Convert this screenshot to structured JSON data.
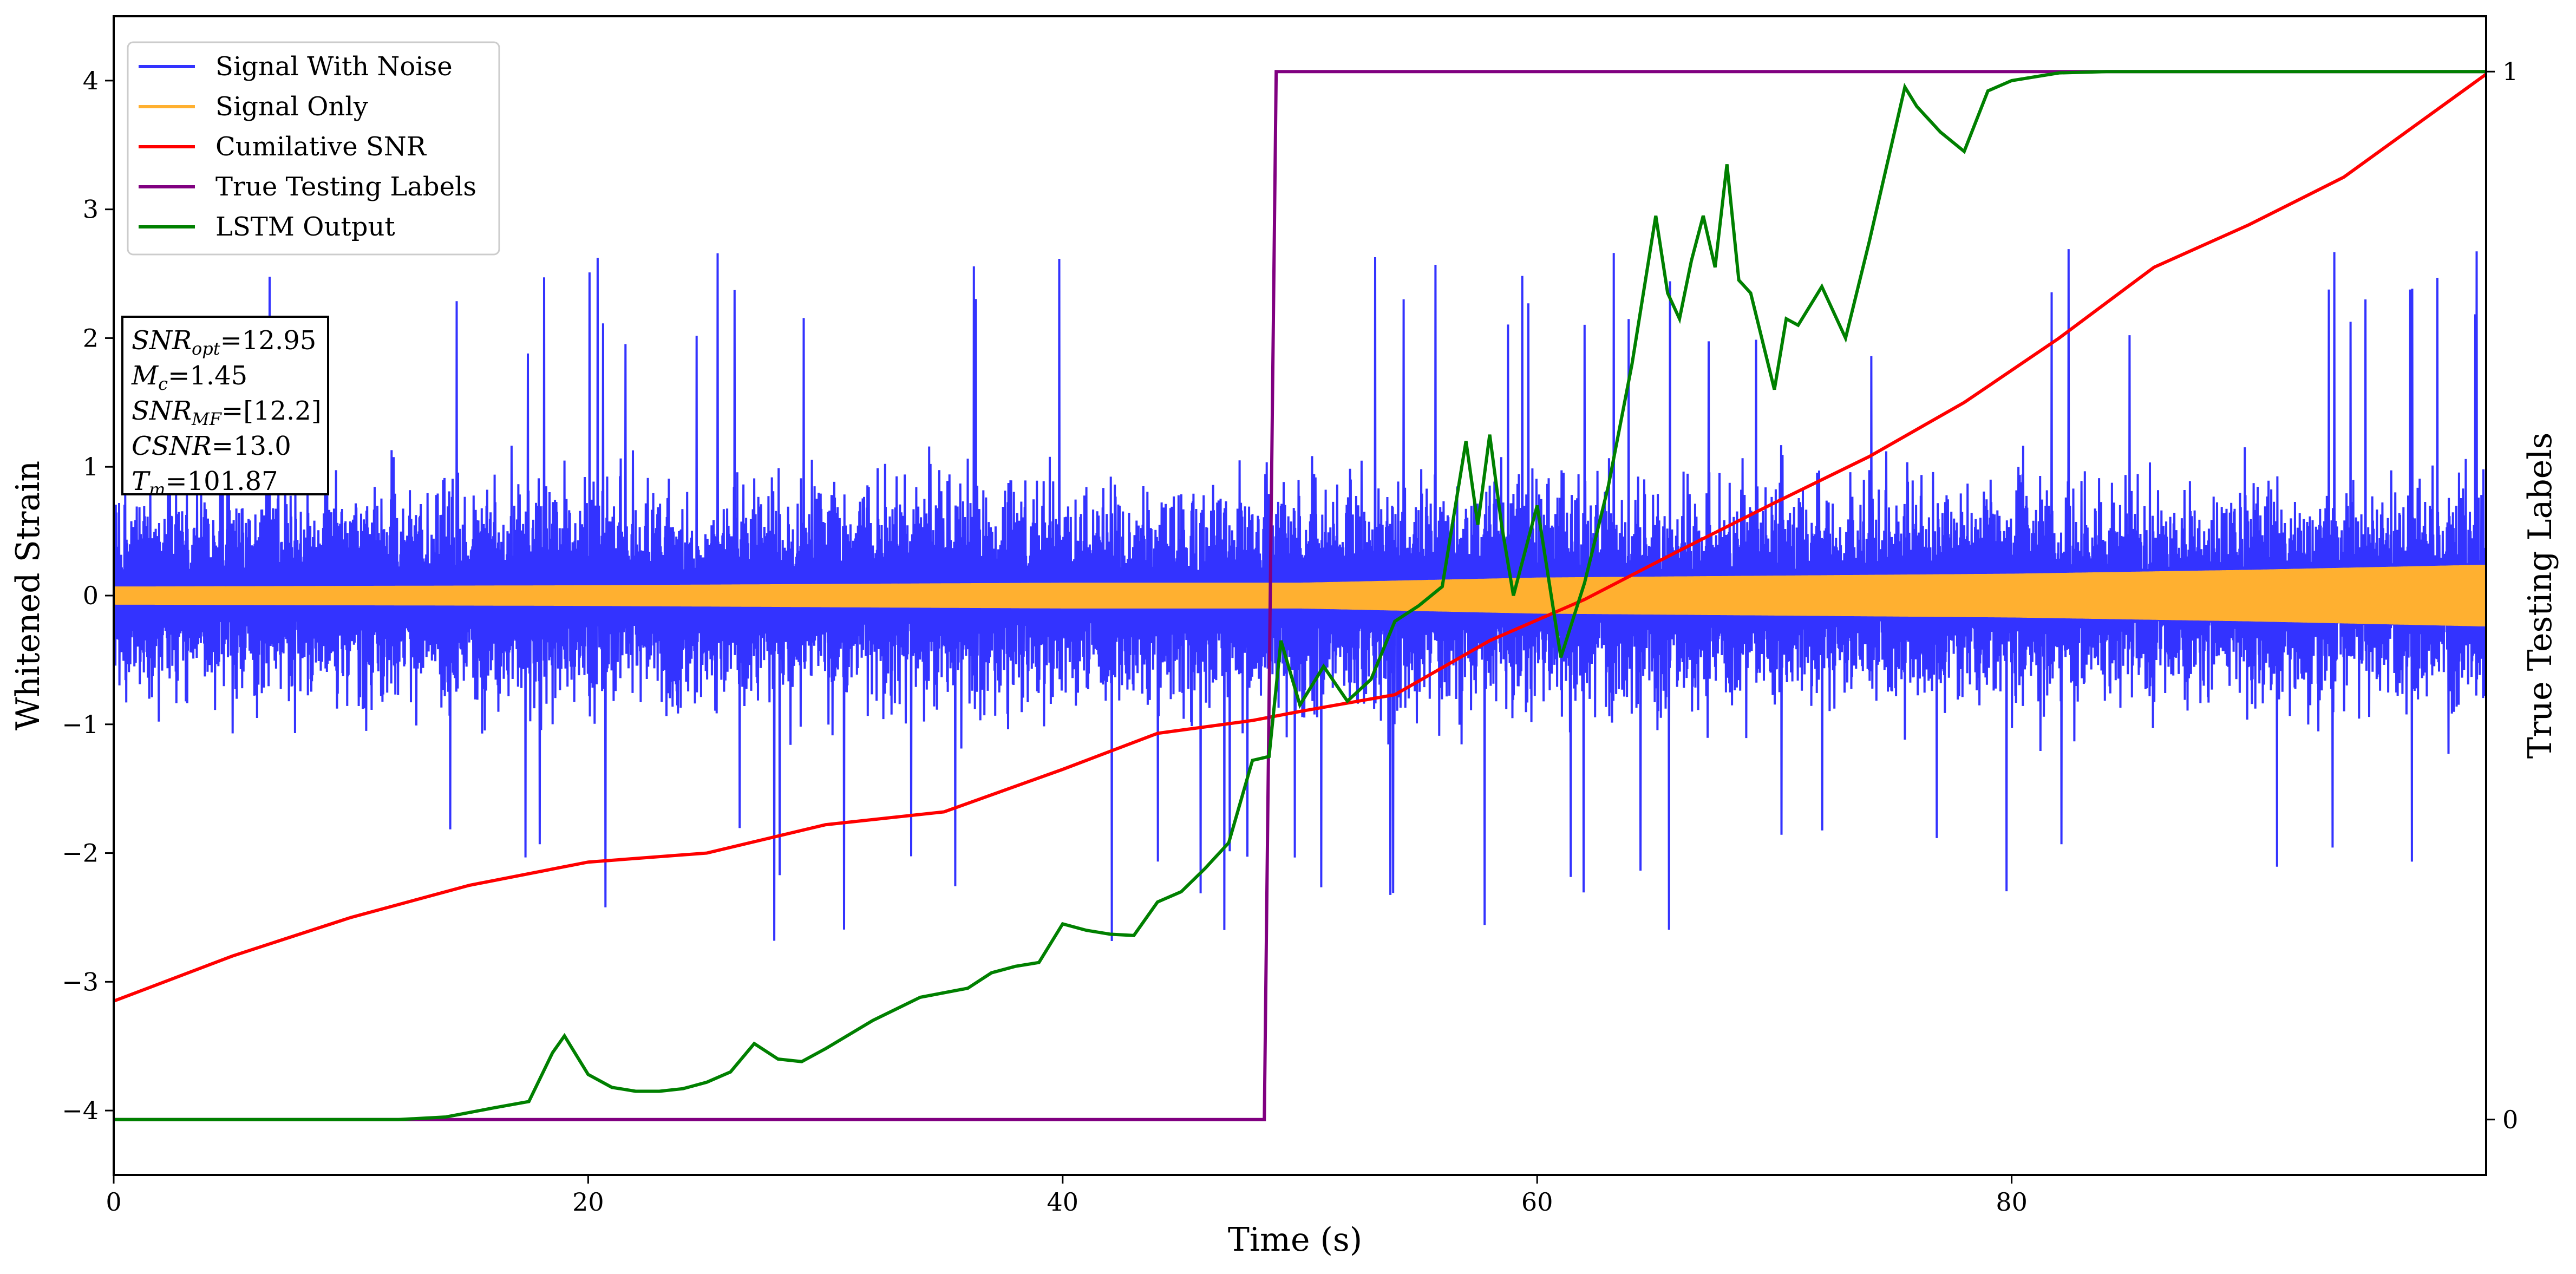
{
  "chart_data": {
    "type": "line",
    "xlabel": "Time (s)",
    "ylabel": "Whitened Strain",
    "ylabel_right": "True Testing Labels",
    "xlim": [
      0,
      100
    ],
    "ylim": [
      -4.5,
      4.5
    ],
    "xticks": [
      0,
      20,
      40,
      60,
      80
    ],
    "yticks": [
      -4,
      -3,
      -2,
      -1,
      0,
      1,
      2,
      3,
      4
    ],
    "yticks_right": [
      0,
      1
    ],
    "grid": false,
    "legend_position": "top-left",
    "legend": [
      {
        "label": "Signal With Noise",
        "color": "#3333ff"
      },
      {
        "label": "Signal Only",
        "color": "#ffb030"
      },
      {
        "label": "Cumilative SNR",
        "color": "#ff0000"
      },
      {
        "label": "True Testing Labels",
        "color": "#800080"
      },
      {
        "label": "LSTM Output",
        "color": "#008000"
      }
    ],
    "info_box": [
      {
        "name": "SNR",
        "sub": "opt",
        "value": "=12.95"
      },
      {
        "name": "M",
        "sub": "c",
        "value": "=1.45"
      },
      {
        "name": "SNR",
        "sub": "MF",
        "value": "=[12.2]"
      },
      {
        "name": "CSNR",
        "sub": "",
        "value": "=13.0"
      },
      {
        "name": "T",
        "sub": "m",
        "value": "=101.87"
      }
    ],
    "series": [
      {
        "name": "Signal With Noise",
        "color": "#3333ff",
        "axis": "left",
        "note_style": "dense noise, approx range -2.8 to 2.8",
        "amplitude_envelope": [
          [
            0,
            1.3
          ],
          [
            100,
            1.3
          ]
        ]
      },
      {
        "name": "Signal Only",
        "color": "#ffb030",
        "axis": "left",
        "amplitude_envelope": [
          [
            0,
            0.07
          ],
          [
            20,
            0.08
          ],
          [
            40,
            0.1
          ],
          [
            50,
            0.1
          ],
          [
            60,
            0.14
          ],
          [
            80,
            0.17
          ],
          [
            90,
            0.2
          ],
          [
            100,
            0.24
          ]
        ]
      },
      {
        "name": "Cumilative SNR",
        "color": "#ff0000",
        "axis": "left",
        "x": [
          0,
          5,
          10,
          15,
          20,
          25,
          30,
          35,
          40,
          44,
          48,
          50,
          54,
          58,
          62,
          66,
          70,
          74,
          78,
          82,
          86,
          90,
          94,
          100
        ],
        "y": [
          -3.15,
          -2.8,
          -2.5,
          -2.25,
          -2.07,
          -2.0,
          -1.78,
          -1.68,
          -1.35,
          -1.07,
          -0.97,
          -0.9,
          -0.77,
          -0.35,
          -0.03,
          0.35,
          0.72,
          1.08,
          1.5,
          2.0,
          2.55,
          2.88,
          3.25,
          4.05
        ]
      },
      {
        "name": "True Testing Labels",
        "color": "#800080",
        "axis": "right",
        "x": [
          0,
          48.5,
          49.0,
          100
        ],
        "y": [
          0,
          0,
          1,
          1
        ]
      },
      {
        "name": "LSTM Output",
        "color": "#008000",
        "axis": "left",
        "x": [
          0,
          12,
          14,
          16,
          17.5,
          18.5,
          19,
          20,
          21,
          22,
          23,
          24,
          25,
          26,
          27,
          28,
          29,
          30,
          32,
          34,
          36,
          37,
          38,
          39,
          40,
          41,
          42,
          43,
          44,
          45,
          46,
          47,
          48,
          48.7,
          49.2,
          50,
          51,
          52,
          53,
          54,
          55,
          56,
          57,
          57.5,
          58,
          58.5,
          59,
          60,
          61,
          62,
          63,
          64,
          65,
          65.5,
          66,
          66.5,
          67,
          67.5,
          68,
          68.5,
          69,
          70,
          70.5,
          71,
          72,
          73,
          74,
          75,
          75.5,
          76,
          77,
          78,
          79,
          80,
          82,
          84,
          100
        ],
        "y": [
          -4.07,
          -4.07,
          -4.05,
          -3.98,
          -3.93,
          -3.55,
          -3.42,
          -3.72,
          -3.82,
          -3.85,
          -3.85,
          -3.83,
          -3.78,
          -3.7,
          -3.48,
          -3.6,
          -3.62,
          -3.52,
          -3.3,
          -3.12,
          -3.05,
          -2.93,
          -2.88,
          -2.85,
          -2.55,
          -2.6,
          -2.63,
          -2.64,
          -2.38,
          -2.3,
          -2.12,
          -1.92,
          -1.28,
          -1.25,
          -0.35,
          -0.85,
          -0.55,
          -0.82,
          -0.65,
          -0.2,
          -0.08,
          0.07,
          1.2,
          0.55,
          1.25,
          0.55,
          0.0,
          0.7,
          -0.48,
          0.1,
          0.85,
          1.8,
          2.95,
          2.35,
          2.15,
          2.6,
          2.95,
          2.55,
          3.35,
          2.45,
          2.35,
          1.6,
          2.15,
          2.1,
          2.4,
          2.0,
          2.75,
          3.55,
          3.95,
          3.8,
          3.6,
          3.45,
          3.92,
          4.0,
          4.06,
          4.07,
          4.07
        ]
      }
    ]
  }
}
